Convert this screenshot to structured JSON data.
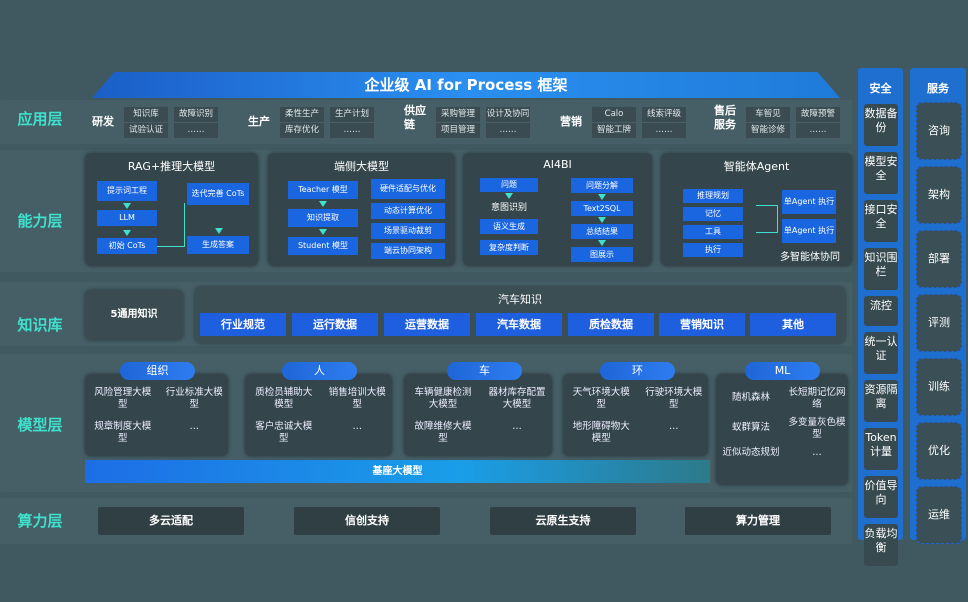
{
  "title": "企业级 AI for Process 框架",
  "layers": {
    "app": "应用层",
    "capability": "能力层",
    "knowledge": "知识库",
    "model": "模型层",
    "compute": "算力层"
  },
  "app_groups": [
    {
      "name": "研发",
      "items": [
        "知识库",
        "故障识别",
        "试验认证",
        "……"
      ]
    },
    {
      "name": "生产",
      "items": [
        "柔性生产",
        "生产计划",
        "库存优化",
        "……"
      ]
    },
    {
      "name": "供应链",
      "items": [
        "采购管理",
        "设计及协同",
        "项目管理",
        "……"
      ]
    },
    {
      "name": "营销",
      "items": [
        "Calo",
        "线索评级",
        "智能工牌",
        "……"
      ]
    },
    {
      "name": "售后服务",
      "items": [
        "车智见",
        "故障预警",
        "智能诊修",
        "……"
      ]
    }
  ],
  "capability": {
    "rag": {
      "title": "RAG+推理大模型",
      "items": [
        "提示词工程",
        "LLM",
        "初始 CoTs",
        "迭代完善 CoTs",
        "生成答案"
      ]
    },
    "edge": {
      "title": "端侧大模型",
      "items": [
        "Teacher 模型",
        "知识提取",
        "Student 模型",
        "硬件适配与优化",
        "动态计算优化",
        "场景驱动裁剪",
        "端云协同架构"
      ]
    },
    "ai4bi": {
      "title": "AI4BI",
      "items": [
        "问题",
        "意图识别",
        "语义生成",
        "复杂度判断",
        "问题分解",
        "Text2SQL",
        "总结结果",
        "图展示"
      ]
    },
    "agent": {
      "title": "智能体Agent",
      "items": [
        "推理规划",
        "记忆",
        "工具",
        "执行",
        "单Agent 执行",
        "单Agent 执行"
      ],
      "footer": "多智能体协同"
    }
  },
  "knowledge": {
    "general": "5通用知识",
    "auto_title": "汽车知识",
    "auto_items": [
      "行业规范",
      "运行数据",
      "运营数据",
      "汽车数据",
      "质检数据",
      "营销知识",
      "其他"
    ]
  },
  "models": [
    {
      "name": "组织",
      "items": [
        "风险管理大模型",
        "行业标准大模型",
        "规章制度大模型",
        "…"
      ]
    },
    {
      "name": "人",
      "items": [
        "质检员辅助大模型",
        "销售培训大模型",
        "客户忠诚大模型",
        "…"
      ]
    },
    {
      "name": "车",
      "items": [
        "车辆健康检测大模型",
        "器材库存配置大模型",
        "故障维修大模型",
        "…"
      ]
    },
    {
      "name": "环",
      "items": [
        "天气环境大模型",
        "行驶环境大模型",
        "地形障碍物大模型",
        "…"
      ]
    },
    {
      "name": "ML",
      "items": [
        "随机森林",
        "长短期记忆网络",
        "蚁群算法",
        "多变量灰色模型",
        "近似动态规划",
        "…"
      ]
    }
  ],
  "base_model": "基座大模型",
  "compute": [
    "多云适配",
    "信创支持",
    "云原生支持",
    "算力管理"
  ],
  "security": {
    "title": "安全",
    "items": [
      "数据备份",
      "模型安全",
      "接口安全",
      "知识围栏",
      "流控",
      "统一认证",
      "资源隔离",
      "Token计量",
      "价值导向",
      "负载均衡"
    ]
  },
  "services": {
    "title": "服务",
    "items": [
      "咨询",
      "架构",
      "部署",
      "评测",
      "训练",
      "优化",
      "运维"
    ]
  },
  "colors": {
    "background": "#405960",
    "accent_blue": "#1a66e0",
    "label_cyan": "#3fe0cc"
  }
}
